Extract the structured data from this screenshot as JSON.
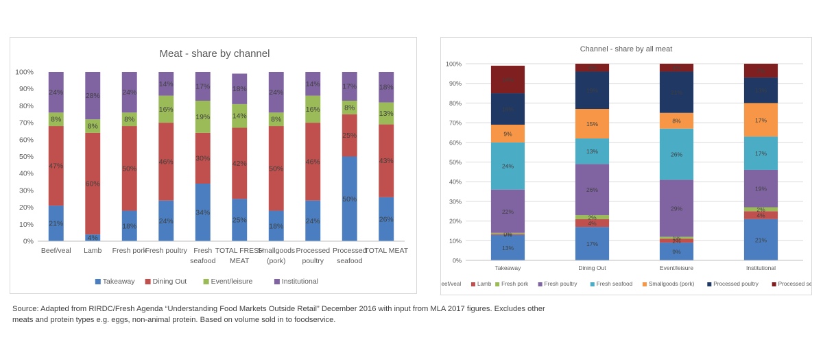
{
  "chart_data": [
    {
      "type": "bar",
      "stacked": true,
      "title": "Meat - share by channel",
      "categories": [
        "Beef/veal",
        "Lamb",
        "Fresh pork",
        "Fresh poultry",
        "Fresh seafood",
        "TOTAL FRESH MEAT",
        "Smallgoods (pork)",
        "Processed poultry",
        "Processed seafood",
        "TOTAL MEAT"
      ],
      "category_lines": [
        [
          "Beef/veal"
        ],
        [
          "Lamb"
        ],
        [
          "Fresh pork"
        ],
        [
          "Fresh poultry"
        ],
        [
          "Fresh",
          "seafood"
        ],
        [
          "TOTAL FRESH",
          "MEAT"
        ],
        [
          "Smallgoods",
          "(pork)"
        ],
        [
          "Processed",
          "poultry"
        ],
        [
          "Processed",
          "seafood"
        ],
        [
          "TOTAL MEAT"
        ]
      ],
      "ylim": [
        0,
        100
      ],
      "yticks": [
        "0%",
        "10%",
        "20%",
        "30%",
        "40%",
        "50%",
        "60%",
        "70%",
        "80%",
        "90%",
        "100%"
      ],
      "legend_position": "bottom",
      "series": [
        {
          "name": "Takeaway",
          "color": "#4a7ec0",
          "values": [
            21,
            4,
            18,
            24,
            34,
            25,
            18,
            24,
            50,
            26
          ],
          "labels": [
            "21%",
            "4%",
            "18%",
            "24%",
            "34%",
            "25%",
            "18%",
            "24%",
            "50%",
            "26%"
          ]
        },
        {
          "name": "Dining Out",
          "color": "#c0504d",
          "values": [
            47,
            60,
            50,
            46,
            30,
            42,
            50,
            46,
            25,
            43
          ],
          "labels": [
            "47%",
            "60%",
            "50%",
            "46%",
            "30%",
            "42%",
            "50%",
            "46%",
            "25%",
            "43%"
          ]
        },
        {
          "name": "Event/leisure",
          "color": "#9bbb59",
          "values": [
            8,
            8,
            8,
            16,
            19,
            14,
            8,
            16,
            8,
            13
          ],
          "labels": [
            "8%",
            "8%",
            "8%",
            "16%",
            "19%",
            "14%",
            "8%",
            "16%",
            "8%",
            "13%"
          ]
        },
        {
          "name": "Institutional",
          "color": "#8064a2",
          "values": [
            24,
            28,
            24,
            14,
            17,
            18,
            24,
            14,
            17,
            18
          ],
          "labels": [
            "24%",
            "28%",
            "24%",
            "14%",
            "17%",
            "18%",
            "24%",
            "14%",
            "17%",
            "18%"
          ]
        }
      ]
    },
    {
      "type": "bar",
      "stacked": true,
      "title": "Channel - share by all meat",
      "categories": [
        "Takeaway",
        "Dining Out",
        "Event/leisure",
        "Institutional"
      ],
      "ylim": [
        0,
        100
      ],
      "yticks": [
        "0%",
        "10%",
        "20%",
        "30%",
        "40%",
        "50%",
        "60%",
        "70%",
        "80%",
        "90%",
        "100%"
      ],
      "legend_position": "bottom",
      "series": [
        {
          "name": "Beef/veal",
          "color": "#4a7ec0",
          "values": [
            13,
            17,
            9,
            21
          ],
          "labels": [
            "13%",
            "17%",
            "9%",
            "21%"
          ]
        },
        {
          "name": "Lamb",
          "color": "#c0504d",
          "values": [
            0.5,
            4,
            2,
            4
          ],
          "labels": [
            "0%",
            "4%",
            "2%",
            "4%"
          ]
        },
        {
          "name": "Fresh pork",
          "color": "#9bbb59",
          "values": [
            0.5,
            2,
            1,
            2
          ],
          "labels": [
            "0%",
            "2%",
            "1%",
            "2%"
          ]
        },
        {
          "name": "Fresh poultry",
          "color": "#8064a2",
          "values": [
            22,
            26,
            29,
            19
          ],
          "labels": [
            "22%",
            "26%",
            "29%",
            "19%"
          ]
        },
        {
          "name": "Fresh seafood",
          "color": "#4bacc6",
          "values": [
            24,
            13,
            26,
            17
          ],
          "labels": [
            "24%",
            "13%",
            "26%",
            "17%"
          ]
        },
        {
          "name": "Smallgoods (pork)",
          "color": "#f79646",
          "values": [
            9,
            15,
            8,
            17
          ],
          "labels": [
            "9%",
            "15%",
            "8%",
            "17%"
          ]
        },
        {
          "name": "Processed poultry",
          "color": "#1f3864",
          "values": [
            16,
            19,
            21,
            13
          ],
          "labels": [
            "16%",
            "19%",
            "21%",
            "13%"
          ]
        },
        {
          "name": "Processed seafood",
          "color": "#7f1f1f",
          "values": [
            14,
            4,
            4,
            7
          ],
          "labels": [
            "14%",
            "4%",
            "4%",
            "7%"
          ]
        }
      ]
    }
  ],
  "source_note": "Source: Adapted from RIRDC/Fresh Agenda “Understanding Food Markets Outside Retail” December 2016 with input from MLA 2017 figures. Excludes other meats and protein types e.g. eggs, non-animal protein. Based on volume sold in to foodservice."
}
